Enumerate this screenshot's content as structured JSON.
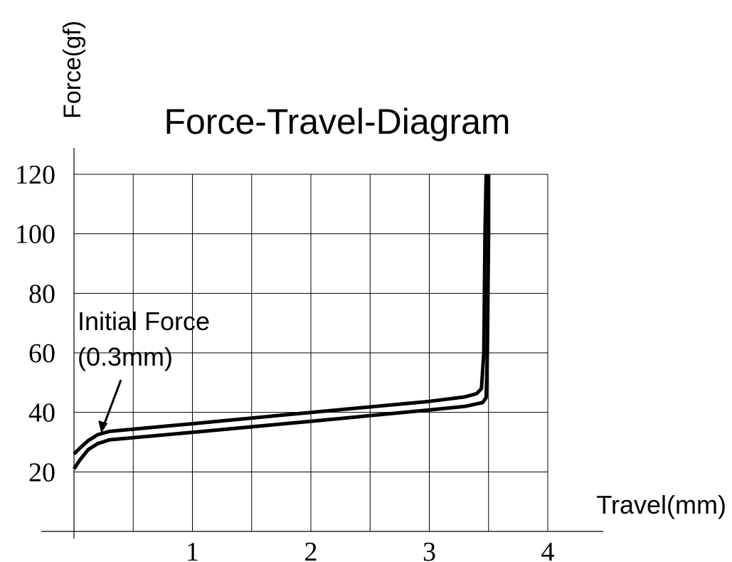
{
  "chart_data": {
    "type": "line",
    "title": "Force-Travel-Diagram",
    "xlabel": "Travel(mm)",
    "ylabel": "Force(gf)",
    "xlim": [
      0,
      4
    ],
    "ylim": [
      0,
      120
    ],
    "xticks": [
      1,
      2,
      3,
      4
    ],
    "yticks": [
      20,
      40,
      60,
      80,
      100,
      120
    ],
    "grid": true,
    "legend": "none",
    "annotation": {
      "text_line1": "Initial Force",
      "text_line2": "(0.3mm)",
      "x": 0.23,
      "y": 33
    },
    "series": [
      {
        "x": [
          0,
          0.05,
          0.12,
          0.2,
          0.3,
          1.0,
          2.0,
          3.0,
          3.3,
          3.4,
          3.44,
          3.46,
          3.47,
          3.48
        ],
        "values": [
          26,
          28,
          30.5,
          32.5,
          33.6,
          36.2,
          40.0,
          43.7,
          45.2,
          46.3,
          48,
          60,
          100,
          120
        ]
      },
      {
        "x": [
          0,
          0.05,
          0.12,
          0.2,
          0.3,
          1.0,
          2.0,
          3.0,
          3.3,
          3.45,
          3.48,
          3.49,
          3.5,
          3.5
        ],
        "values": [
          21,
          24,
          27.5,
          29.5,
          30.8,
          33.3,
          37.0,
          40.8,
          42.0,
          43.3,
          45,
          60,
          100,
          120
        ]
      }
    ]
  }
}
